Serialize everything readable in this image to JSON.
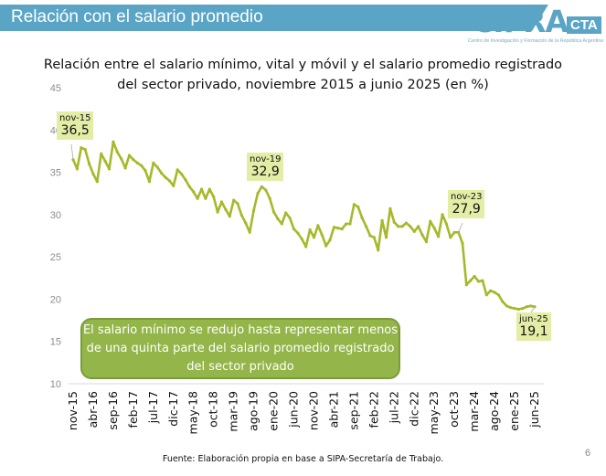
{
  "header": {
    "title": "Relación con el salario promedio"
  },
  "logo": {
    "main": "CIFRA",
    "suffix": "CTA",
    "subtitle": "Centro de Investigación y Formación de la República Argentina"
  },
  "chart_data": {
    "type": "line",
    "title": "Relación entre el salario mínimo, vital y móvil y el salario promedio registrado del sector privado, noviembre 2015 a junio 2025 (en %)",
    "title_lines": [
      "Relación entre el salario mínimo, vital y móvil y el salario promedio registrado",
      "del sector privado, noviembre 2015 a junio 2025 (en %)"
    ],
    "xlabel": "",
    "ylabel": "",
    "ylim": [
      10,
      45
    ],
    "yticks": [
      10,
      15,
      20,
      25,
      30,
      35,
      40,
      45
    ],
    "xtick_labels": [
      "nov-15",
      "abr-16",
      "sep-16",
      "feb-17",
      "jul-17",
      "dic-17",
      "may-18",
      "oct-18",
      "mar-19",
      "ago-19",
      "ene-20",
      "jun-20",
      "nov-20",
      "abr-21",
      "sep-21",
      "feb-22",
      "jul-22",
      "dic-22",
      "may-23",
      "oct-23",
      "mar-24",
      "ago-24",
      "ene-25",
      "jun-25"
    ],
    "grid": false,
    "line_color": "#a7b82a",
    "x": [
      "nov-15",
      "dic-15",
      "ene-16",
      "feb-16",
      "mar-16",
      "abr-16",
      "may-16",
      "jun-16",
      "jul-16",
      "ago-16",
      "sep-16",
      "oct-16",
      "nov-16",
      "dic-16",
      "ene-17",
      "feb-17",
      "mar-17",
      "abr-17",
      "may-17",
      "jun-17",
      "jul-17",
      "ago-17",
      "sep-17",
      "oct-17",
      "nov-17",
      "dic-17",
      "ene-18",
      "feb-18",
      "mar-18",
      "abr-18",
      "may-18",
      "jun-18",
      "jul-18",
      "ago-18",
      "sep-18",
      "oct-18",
      "nov-18",
      "dic-18",
      "ene-19",
      "feb-19",
      "mar-19",
      "abr-19",
      "may-19",
      "jun-19",
      "jul-19",
      "ago-19",
      "sep-19",
      "oct-19",
      "nov-19",
      "dic-19",
      "ene-20",
      "feb-20",
      "mar-20",
      "abr-20",
      "may-20",
      "jun-20",
      "jul-20",
      "ago-20",
      "sep-20",
      "oct-20",
      "nov-20",
      "dic-20",
      "ene-21",
      "feb-21",
      "mar-21",
      "abr-21",
      "may-21",
      "jun-21",
      "jul-21",
      "ago-21",
      "sep-21",
      "oct-21",
      "nov-21",
      "dic-21",
      "ene-22",
      "feb-22",
      "mar-22",
      "abr-22",
      "may-22",
      "jun-22",
      "jul-22",
      "ago-22",
      "sep-22",
      "oct-22",
      "nov-22",
      "dic-22",
      "ene-23",
      "feb-23",
      "mar-23",
      "abr-23",
      "may-23",
      "jun-23",
      "jul-23",
      "ago-23",
      "sep-23",
      "oct-23",
      "nov-23",
      "dic-23",
      "ene-24",
      "feb-24",
      "mar-24",
      "abr-24",
      "may-24",
      "jun-24",
      "jul-24",
      "ago-24",
      "sep-24",
      "oct-24",
      "nov-24",
      "dic-24",
      "ene-25",
      "feb-25",
      "mar-25",
      "abr-25",
      "may-25",
      "jun-25"
    ],
    "values": [
      36.5,
      35.4,
      37.9,
      37.7,
      36.0,
      34.8,
      33.9,
      37.2,
      36.3,
      35.4,
      38.6,
      37.4,
      36.6,
      35.5,
      37.0,
      36.5,
      36.1,
      35.8,
      35.2,
      33.9,
      36.1,
      35.6,
      34.9,
      34.4,
      34.0,
      33.4,
      35.3,
      34.8,
      34.1,
      33.3,
      32.7,
      31.9,
      33.0,
      31.9,
      33.0,
      32.1,
      30.3,
      31.5,
      30.6,
      29.8,
      31.7,
      31.3,
      29.9,
      29.0,
      27.9,
      30.5,
      32.5,
      33.3,
      32.9,
      31.9,
      30.3,
      29.5,
      28.9,
      30.2,
      29.6,
      28.3,
      27.8,
      27.1,
      26.2,
      28.2,
      27.3,
      28.7,
      27.6,
      26.3,
      27.0,
      28.5,
      28.4,
      28.3,
      28.9,
      28.9,
      31.2,
      30.9,
      29.6,
      28.6,
      27.5,
      27.3,
      25.8,
      29.3,
      27.3,
      30.7,
      29.1,
      28.6,
      28.6,
      29.0,
      28.6,
      28.0,
      28.6,
      27.6,
      26.8,
      29.2,
      28.4,
      27.4,
      30.0,
      28.9,
      27.3,
      27.9,
      27.9,
      26.6,
      21.7,
      22.2,
      22.7,
      22.1,
      22.2,
      20.5,
      21.0,
      20.8,
      20.5,
      19.7,
      19.2,
      19.0,
      18.9,
      18.8,
      18.9,
      19.1,
      19.2,
      19.1
    ],
    "annotations": [
      {
        "date": "nov-15",
        "label": "36,5"
      },
      {
        "date": "nov-19",
        "label": "32,9"
      },
      {
        "date": "nov-23",
        "label": "27,9"
      },
      {
        "date": "jun-25",
        "label": "19,1"
      }
    ],
    "callout": "El salario mínimo se redujo hasta representar menos de una quinta parte del salario promedio registrado del sector privado",
    "callout_color": "#93b54a"
  },
  "footer": {
    "source": "Fuente: Elaboración propia en base a SIPA-Secretaría de Trabajo.",
    "page_number": "6"
  }
}
